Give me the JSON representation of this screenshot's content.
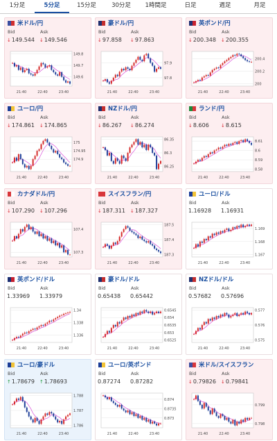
{
  "tabs": [
    "1分足",
    "5分足",
    "15分足",
    "30分足",
    "1時間足",
    "日足",
    "週足",
    "月足"
  ],
  "active_tab": 1,
  "labels": {
    "bid": "Bid",
    "ask": "Ask"
  },
  "x_ticks": [
    "21:40",
    "22:40",
    "23:40"
  ],
  "cards": [
    {
      "name": "米ドル/円",
      "bid": "149.544",
      "ask": "149.546",
      "dir": "down",
      "flag": [
        "#3c4ea0",
        "#d22d2d"
      ],
      "yticks": [
        "149.8",
        "149.7",
        "149.6"
      ],
      "series": [
        149.72,
        149.69,
        149.7,
        149.66,
        149.68,
        149.64,
        149.66,
        149.67,
        149.63,
        149.62,
        149.61,
        149.63,
        149.66,
        149.69,
        149.72,
        149.71,
        149.68,
        149.69,
        149.7,
        149.66,
        149.64,
        149.62,
        149.61,
        149.64,
        149.6,
        149.57,
        149.55,
        149.56,
        149.54
      ]
    },
    {
      "name": "豪ドル/円",
      "bid": "97.858",
      "ask": "97.863",
      "dir": "down",
      "flag": [
        "#1f2f6e",
        "#c42e2e"
      ],
      "yticks": [
        "97.9",
        "97.8"
      ],
      "series": [
        97.78,
        97.79,
        97.77,
        97.76,
        97.78,
        97.8,
        97.82,
        97.81,
        97.84,
        97.86,
        97.85,
        97.87,
        97.86,
        97.85,
        97.88,
        97.9,
        97.92,
        97.94,
        97.92,
        97.91,
        97.95,
        97.96,
        97.93,
        97.9,
        97.88,
        97.84,
        97.86,
        97.87,
        97.86
      ]
    },
    {
      "name": "英ポンド/円",
      "bid": "200.348",
      "ask": "200.355",
      "dir": "down",
      "flag": [
        "#1d2f72",
        "#c8202e"
      ],
      "yticks": [
        "200.4",
        "200.2",
        "200"
      ],
      "series": [
        200.02,
        200.04,
        200.06,
        200.05,
        200.1,
        200.12,
        200.14,
        200.13,
        200.18,
        200.22,
        200.24,
        200.26,
        200.25,
        200.3,
        200.33,
        200.36,
        200.38,
        200.41,
        200.43,
        200.46,
        200.45,
        200.48,
        200.47,
        200.44,
        200.41,
        200.38,
        200.36,
        200.35,
        200.35
      ]
    },
    {
      "name": "ユーロ/円",
      "bid": "174.861",
      "ask": "174.865",
      "dir": "down",
      "flag": [
        "#1c3d97",
        "#f2c335"
      ],
      "yticks": [
        "175",
        "174.95",
        "174.9"
      ],
      "series": [
        174.88,
        174.91,
        174.89,
        174.93,
        174.9,
        174.87,
        174.85,
        174.86,
        174.84,
        174.86,
        174.9,
        174.92,
        174.95,
        174.96,
        174.99,
        175.01,
        175.02,
        175.0,
        174.98,
        174.96,
        174.94,
        174.95,
        174.93,
        174.91,
        174.9,
        174.88,
        174.87,
        174.86,
        174.86
      ]
    },
    {
      "name": "NZドル/円",
      "bid": "86.267",
      "ask": "86.274",
      "dir": "down",
      "flag": [
        "#1f2f6e",
        "#c42e2e"
      ],
      "yticks": [
        "86.35",
        "86.3",
        "86.25"
      ],
      "series": [
        86.32,
        86.31,
        86.29,
        86.3,
        86.27,
        86.26,
        86.28,
        86.27,
        86.26,
        86.29,
        86.28,
        86.27,
        86.3,
        86.32,
        86.33,
        86.34,
        86.35,
        86.33,
        86.34,
        86.32,
        86.33,
        86.31,
        86.33,
        86.32,
        86.3,
        86.29,
        86.24,
        86.26,
        86.27
      ]
    },
    {
      "name": "ランド/円",
      "bid": "8.606",
      "ask": "8.615",
      "dir": "down",
      "flag": [
        "#1d8a3a",
        "#d8363b"
      ],
      "yticks": [
        "8.61",
        "8.6",
        "8.59",
        "8.58"
      ],
      "series": [
        8.586,
        8.588,
        8.59,
        8.589,
        8.592,
        8.594,
        8.593,
        8.596,
        8.598,
        8.597,
        8.6,
        8.601,
        8.603,
        8.602,
        8.604,
        8.606,
        8.605,
        8.607,
        8.606,
        8.608,
        8.609,
        8.607,
        8.61,
        8.611,
        8.609,
        8.612,
        8.61,
        8.608,
        8.606
      ]
    },
    {
      "name": "カナダドル/円",
      "bid": "107.290",
      "ask": "107.296",
      "dir": "down",
      "flag": [
        "#d8363b",
        "#ffffff"
      ],
      "yticks": [
        "107.4",
        "107.3"
      ],
      "series": [
        107.35,
        107.37,
        107.36,
        107.38,
        107.4,
        107.39,
        107.41,
        107.42,
        107.4,
        107.41,
        107.39,
        107.38,
        107.39,
        107.37,
        107.38,
        107.36,
        107.37,
        107.35,
        107.36,
        107.34,
        107.35,
        107.33,
        107.34,
        107.32,
        107.33,
        107.3,
        107.31,
        107.29,
        107.29
      ]
    },
    {
      "name": "スイスフラン/円",
      "bid": "187.311",
      "ask": "187.327",
      "dir": "down",
      "flag": [
        "#d8363b",
        "#d8363b"
      ],
      "yticks": [
        "187.5",
        "187.4",
        "187.3"
      ],
      "series": [
        187.35,
        187.37,
        187.36,
        187.34,
        187.36,
        187.38,
        187.37,
        187.39,
        187.42,
        187.45,
        187.47,
        187.49,
        187.48,
        187.46,
        187.45,
        187.44,
        187.43,
        187.41,
        187.42,
        187.4,
        187.39,
        187.38,
        187.39,
        187.37,
        187.36,
        187.34,
        187.33,
        187.32,
        187.31
      ]
    },
    {
      "name": "ユーロ/ドル",
      "bid": "1.16928",
      "ask": "1.16931",
      "dir": "none",
      "flag": [
        "#1c3d97",
        "#f2c335"
      ],
      "yticks": [
        "1.169",
        "1.168",
        "1.167"
      ],
      "series": [
        1.1675,
        1.1678,
        1.1676,
        1.168,
        1.1679,
        1.1682,
        1.1681,
        1.1684,
        1.1683,
        1.1686,
        1.1685,
        1.1687,
        1.1686,
        1.1688,
        1.1687,
        1.1689,
        1.169,
        1.1688,
        1.1689,
        1.1691,
        1.169,
        1.1692,
        1.1691,
        1.1693,
        1.1691,
        1.1692,
        1.1693,
        1.1692,
        1.1693
      ]
    },
    {
      "name": "英ポンド/ドル",
      "bid": "1.33969",
      "ask": "1.33979",
      "dir": "none",
      "flag": [
        "#1d2f72",
        "#c8202e"
      ],
      "yticks": [
        "1.34",
        "1.338",
        "1.336"
      ],
      "series": [
        1.3352,
        1.3355,
        1.3357,
        1.3356,
        1.3359,
        1.3362,
        1.3364,
        1.3363,
        1.3366,
        1.3368,
        1.337,
        1.3369,
        1.3372,
        1.3374,
        1.3376,
        1.3375,
        1.3378,
        1.338,
        1.3383,
        1.3382,
        1.3385,
        1.3387,
        1.3389,
        1.3391,
        1.3392,
        1.3394,
        1.3395,
        1.3396,
        1.3397
      ]
    },
    {
      "name": "豪ドル/ドル",
      "bid": "0.65438",
      "ask": "0.65442",
      "dir": "none",
      "flag": [
        "#1f2f6e",
        "#c42e2e"
      ],
      "yticks": [
        "0.6545",
        "0.654",
        "0.6535",
        "0.653",
        "0.6525"
      ],
      "series": [
        0.6527,
        0.6529,
        0.6531,
        0.653,
        0.6533,
        0.6535,
        0.6534,
        0.6537,
        0.6536,
        0.6538,
        0.654,
        0.6539,
        0.6541,
        0.654,
        0.6542,
        0.6541,
        0.6543,
        0.6542,
        0.6544,
        0.6543,
        0.6545,
        0.6544,
        0.6543,
        0.6544,
        0.6542,
        0.6543,
        0.6544,
        0.6543,
        0.6544
      ]
    },
    {
      "name": "NZドル/ドル",
      "bid": "0.57682",
      "ask": "0.57696",
      "dir": "none",
      "flag": [
        "#1f2f6e",
        "#c42e2e"
      ],
      "yticks": [
        "0.577",
        "0.576",
        "0.575"
      ],
      "series": [
        0.5754,
        0.5756,
        0.5758,
        0.5757,
        0.576,
        0.5762,
        0.5761,
        0.5764,
        0.5763,
        0.5765,
        0.5764,
        0.5766,
        0.5765,
        0.5767,
        0.5766,
        0.5768,
        0.5767,
        0.5765,
        0.5766,
        0.5767,
        0.5768,
        0.5766,
        0.5767,
        0.5768,
        0.5767,
        0.5769,
        0.5768,
        0.5767,
        0.5768
      ]
    },
    {
      "name": "ユーロ/豪ドル",
      "bid": "1.78679",
      "ask": "1.78693",
      "dir": "up",
      "flag": [
        "#1c3d97",
        "#f2c335"
      ],
      "yticks": [
        "1.788",
        "1.787",
        "1.786"
      ],
      "series": [
        1.7874,
        1.7876,
        1.7878,
        1.7877,
        1.7879,
        1.7876,
        1.7872,
        1.7869,
        1.7866,
        1.7864,
        1.7862,
        1.7865,
        1.7863,
        1.7861,
        1.7864,
        1.7866,
        1.7868,
        1.7867,
        1.7869,
        1.7868,
        1.7866,
        1.7864,
        1.7862,
        1.7863,
        1.7861,
        1.7864,
        1.7866,
        1.7867,
        1.7868
      ]
    },
    {
      "name": "ユーロ/英ポンド",
      "bid": "0.87274",
      "ask": "0.87282",
      "dir": "none",
      "flag": [
        "#1c3d97",
        "#f2c335"
      ],
      "yticks": [
        "0.874",
        "0.8735",
        "0.873"
      ],
      "series": [
        0.8742,
        0.8741,
        0.874,
        0.8741,
        0.8739,
        0.8738,
        0.8737,
        0.8736,
        0.8737,
        0.8735,
        0.8734,
        0.8733,
        0.8734,
        0.8732,
        0.8733,
        0.8731,
        0.8732,
        0.873,
        0.8731,
        0.8729,
        0.873,
        0.8728,
        0.8729,
        0.8727,
        0.8728,
        0.8727,
        0.8726,
        0.8727,
        0.8727
      ]
    },
    {
      "name": "米ドル/スイスフラン",
      "bid": "0.79826",
      "ask": "0.79841",
      "dir": "down",
      "flag": [
        "#3c4ea0",
        "#d8363b"
      ],
      "yticks": [
        "0.799",
        "0.798"
      ],
      "series": [
        0.7993,
        0.7995,
        0.7992,
        0.799,
        0.7988,
        0.7991,
        0.7989,
        0.7987,
        0.7985,
        0.7988,
        0.7986,
        0.7984,
        0.7983,
        0.7985,
        0.7984,
        0.7982,
        0.7983,
        0.7981,
        0.798,
        0.7982,
        0.7979,
        0.7981,
        0.798,
        0.7982,
        0.7981,
        0.7983,
        0.7982,
        0.7983,
        0.7983
      ]
    }
  ]
}
